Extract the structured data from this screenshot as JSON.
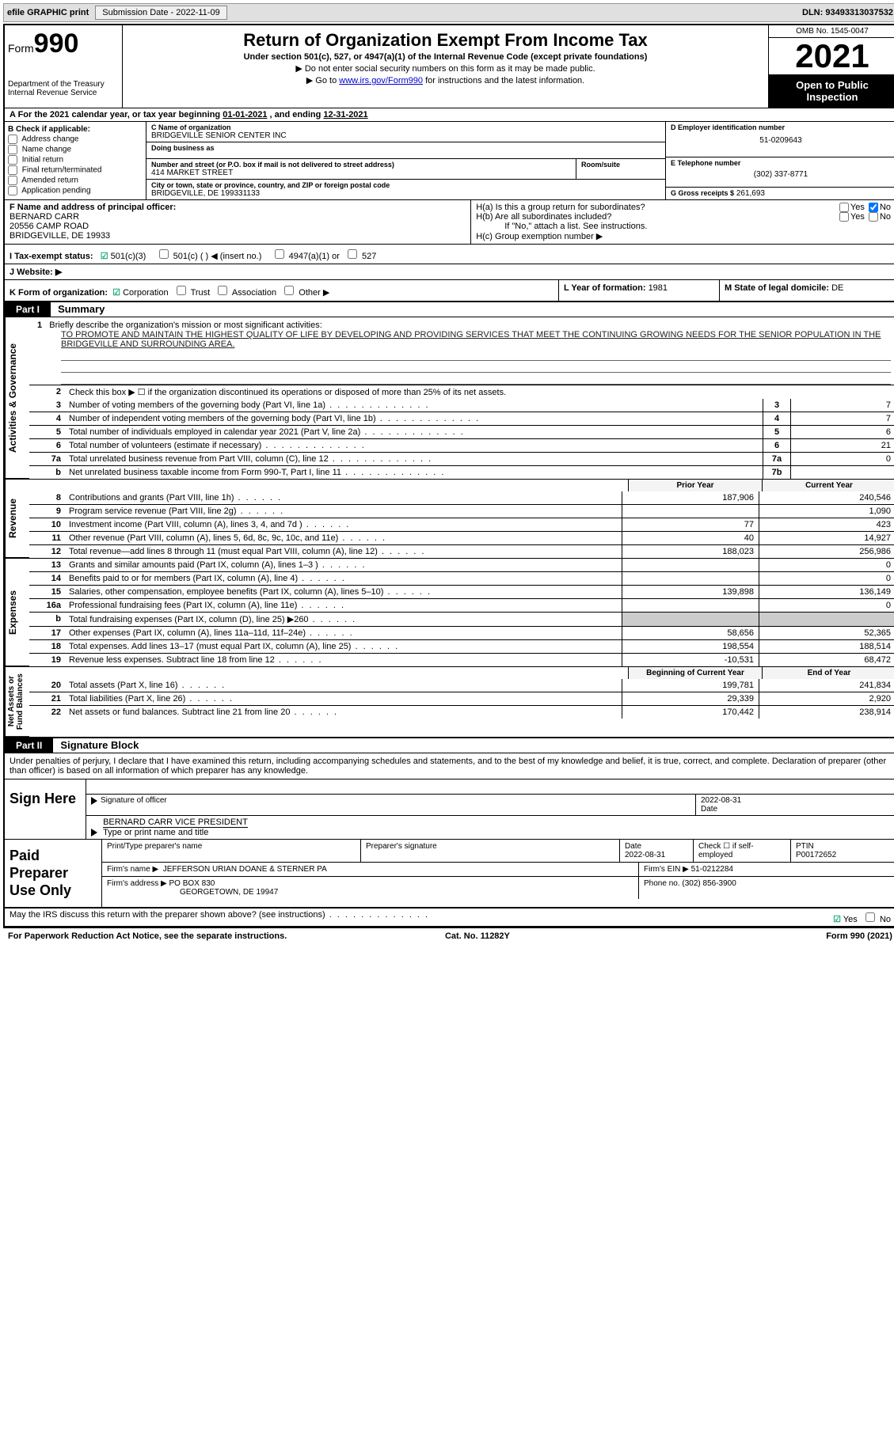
{
  "topbar": {
    "efile": "efile GRAPHIC print",
    "submission_label": "Submission Date - ",
    "submission_date": "2022-11-09",
    "dln_label": "DLN: ",
    "dln": "93493313037532"
  },
  "header": {
    "form_label": "Form",
    "form_no": "990",
    "dept": "Department of the Treasury\nInternal Revenue Service",
    "title": "Return of Organization Exempt From Income Tax",
    "subtitle": "Under section 501(c), 527, or 4947(a)(1) of the Internal Revenue Code (except private foundations)",
    "note1": "▶ Do not enter social security numbers on this form as it may be made public.",
    "note2_pre": "▶ Go to ",
    "note2_link": "www.irs.gov/Form990",
    "note2_post": " for instructions and the latest information.",
    "omb": "OMB No. 1545-0047",
    "year": "2021",
    "open": "Open to Public Inspection"
  },
  "A": {
    "text_pre": "A For the 2021 calendar year, or tax year beginning ",
    "begin": "01-01-2021",
    "mid": " , and ending ",
    "end": "12-31-2021"
  },
  "B": {
    "hdr": "B Check if applicable:",
    "items": [
      "Address change",
      "Name change",
      "Initial return",
      "Final return/terminated",
      "Amended return",
      "Application pending"
    ]
  },
  "C": {
    "name_lbl": "C Name of organization",
    "name": "BRIDGEVILLE SENIOR CENTER INC",
    "dba_lbl": "Doing business as",
    "addr_lbl": "Number and street (or P.O. box if mail is not delivered to street address)",
    "room_lbl": "Room/suite",
    "addr": "414 MARKET STREET",
    "city_lbl": "City or town, state or province, country, and ZIP or foreign postal code",
    "city": "BRIDGEVILLE, DE  199331133"
  },
  "D": {
    "lbl": "D Employer identification number",
    "val": "51-0209643"
  },
  "E": {
    "lbl": "E Telephone number",
    "val": "(302) 337-8771"
  },
  "G": {
    "lbl": "G Gross receipts $",
    "val": "261,693"
  },
  "F": {
    "lbl": "F  Name and address of principal officer:",
    "name": "BERNARD CARR",
    "addr1": "20556 CAMP ROAD",
    "addr2": "BRIDGEVILLE, DE  19933"
  },
  "H": {
    "a": "H(a)  Is this a group return for subordinates?",
    "b": "H(b)  Are all subordinates included?",
    "b_note": "If \"No,\" attach a list. See instructions.",
    "c": "H(c)  Group exemption number ▶",
    "yes": "Yes",
    "no": "No"
  },
  "I": {
    "lbl": "I  Tax-exempt status:",
    "o1": "501(c)(3)",
    "o2": "501(c) (  ) ◀ (insert no.)",
    "o3": "4947(a)(1) or",
    "o4": "527"
  },
  "J": {
    "lbl": "J  Website: ▶"
  },
  "K": {
    "lbl": "K Form of organization:",
    "o1": "Corporation",
    "o2": "Trust",
    "o3": "Association",
    "o4": "Other ▶"
  },
  "L": {
    "lbl": "L Year of formation: ",
    "val": "1981"
  },
  "M": {
    "lbl": "M State of legal domicile: ",
    "val": "DE"
  },
  "part1": {
    "tag": "Part I",
    "title": "Summary"
  },
  "summary": {
    "side_labels": [
      "Activities & Governance",
      "Revenue",
      "Expenses",
      "Net Assets or\nFund Balances"
    ],
    "l1_lbl": "Briefly describe the organization's mission or most significant activities:",
    "l1_txt": "TO PROMOTE AND MAINTAIN THE HIGHEST QUALITY OF LIFE BY DEVELOPING AND PROVIDING SERVICES THAT MEET THE CONTINUING GROWING NEEDS FOR THE SENIOR POPULATION IN THE BRIDGEVILLE AND SURROUNDING AREA.",
    "l2": "Check this box ▶ ☐  if the organization discontinued its operations or disposed of more than 25% of its net assets.",
    "col_prior": "Prior Year",
    "col_current": "Current Year",
    "col_begin": "Beginning of Current Year",
    "col_end": "End of Year",
    "lines_box": [
      {
        "n": "3",
        "t": "Number of voting members of the governing body (Part VI, line 1a)",
        "box": "3",
        "v": "7"
      },
      {
        "n": "4",
        "t": "Number of independent voting members of the governing body (Part VI, line 1b)",
        "box": "4",
        "v": "7"
      },
      {
        "n": "5",
        "t": "Total number of individuals employed in calendar year 2021 (Part V, line 2a)",
        "box": "5",
        "v": "6"
      },
      {
        "n": "6",
        "t": "Total number of volunteers (estimate if necessary)",
        "box": "6",
        "v": "21"
      },
      {
        "n": "7a",
        "t": "Total unrelated business revenue from Part VIII, column (C), line 12",
        "box": "7a",
        "v": "0"
      },
      {
        "n": "b",
        "t": "Net unrelated business taxable income from Form 990-T, Part I, line 11",
        "box": "7b",
        "v": ""
      }
    ],
    "lines_rev": [
      {
        "n": "8",
        "t": "Contributions and grants (Part VIII, line 1h)",
        "p": "187,906",
        "c": "240,546"
      },
      {
        "n": "9",
        "t": "Program service revenue (Part VIII, line 2g)",
        "p": "",
        "c": "1,090"
      },
      {
        "n": "10",
        "t": "Investment income (Part VIII, column (A), lines 3, 4, and 7d )",
        "p": "77",
        "c": "423"
      },
      {
        "n": "11",
        "t": "Other revenue (Part VIII, column (A), lines 5, 6d, 8c, 9c, 10c, and 11e)",
        "p": "40",
        "c": "14,927"
      },
      {
        "n": "12",
        "t": "Total revenue—add lines 8 through 11 (must equal Part VIII, column (A), line 12)",
        "p": "188,023",
        "c": "256,986"
      }
    ],
    "lines_exp": [
      {
        "n": "13",
        "t": "Grants and similar amounts paid (Part IX, column (A), lines 1–3 )",
        "p": "",
        "c": "0"
      },
      {
        "n": "14",
        "t": "Benefits paid to or for members (Part IX, column (A), line 4)",
        "p": "",
        "c": "0"
      },
      {
        "n": "15",
        "t": "Salaries, other compensation, employee benefits (Part IX, column (A), lines 5–10)",
        "p": "139,898",
        "c": "136,149"
      },
      {
        "n": "16a",
        "t": "Professional fundraising fees (Part IX, column (A), line 11e)",
        "p": "",
        "c": "0"
      },
      {
        "n": "b",
        "t": "Total fundraising expenses (Part IX, column (D), line 25) ▶260",
        "p": "shade",
        "c": "shade"
      },
      {
        "n": "17",
        "t": "Other expenses (Part IX, column (A), lines 11a–11d, 11f–24e)",
        "p": "58,656",
        "c": "52,365"
      },
      {
        "n": "18",
        "t": "Total expenses. Add lines 13–17 (must equal Part IX, column (A), line 25)",
        "p": "198,554",
        "c": "188,514"
      },
      {
        "n": "19",
        "t": "Revenue less expenses. Subtract line 18 from line 12",
        "p": "-10,531",
        "c": "68,472"
      }
    ],
    "lines_net": [
      {
        "n": "20",
        "t": "Total assets (Part X, line 16)",
        "p": "199,781",
        "c": "241,834"
      },
      {
        "n": "21",
        "t": "Total liabilities (Part X, line 26)",
        "p": "29,339",
        "c": "2,920"
      },
      {
        "n": "22",
        "t": "Net assets or fund balances. Subtract line 21 from line 20",
        "p": "170,442",
        "c": "238,914"
      }
    ]
  },
  "part2": {
    "tag": "Part II",
    "title": "Signature Block"
  },
  "sig": {
    "intro": "Under penalties of perjury, I declare that I have examined this return, including accompanying schedules and statements, and to the best of my knowledge and belief, it is true, correct, and complete. Declaration of preparer (other than officer) is based on all information of which preparer has any knowledge.",
    "sign_here": "Sign Here",
    "officer_sig": "Signature of officer",
    "date": "Date",
    "date_val": "2022-08-31",
    "name_title_lbl": "Type or print name and title",
    "name_title": "BERNARD CARR  VICE PRESIDENT"
  },
  "prep": {
    "hdr": "Paid Preparer Use Only",
    "r1": {
      "a": "Print/Type preparer's name",
      "b": "Preparer's signature",
      "c": "Date",
      "c_val": "2022-08-31",
      "d": "Check ☐ if self-employed",
      "e": "PTIN",
      "e_val": "P00172652"
    },
    "r2": {
      "a": "Firm's name    ▶",
      "a_val": "JEFFERSON URIAN DOANE & STERNER PA",
      "b": "Firm's EIN ▶",
      "b_val": "51-0212284"
    },
    "r3": {
      "a": "Firm's address ▶",
      "a_val": "PO BOX 830",
      "a_val2": "GEORGETOWN, DE  19947",
      "b": "Phone no.",
      "b_val": "(302) 856-3900"
    }
  },
  "footer": {
    "discuss": "May the IRS discuss this return with the preparer shown above? (see instructions)",
    "yes": "Yes",
    "no": "No",
    "paperwork": "For Paperwork Reduction Act Notice, see the separate instructions.",
    "cat": "Cat. No. 11282Y",
    "form": "Form 990 (2021)"
  }
}
